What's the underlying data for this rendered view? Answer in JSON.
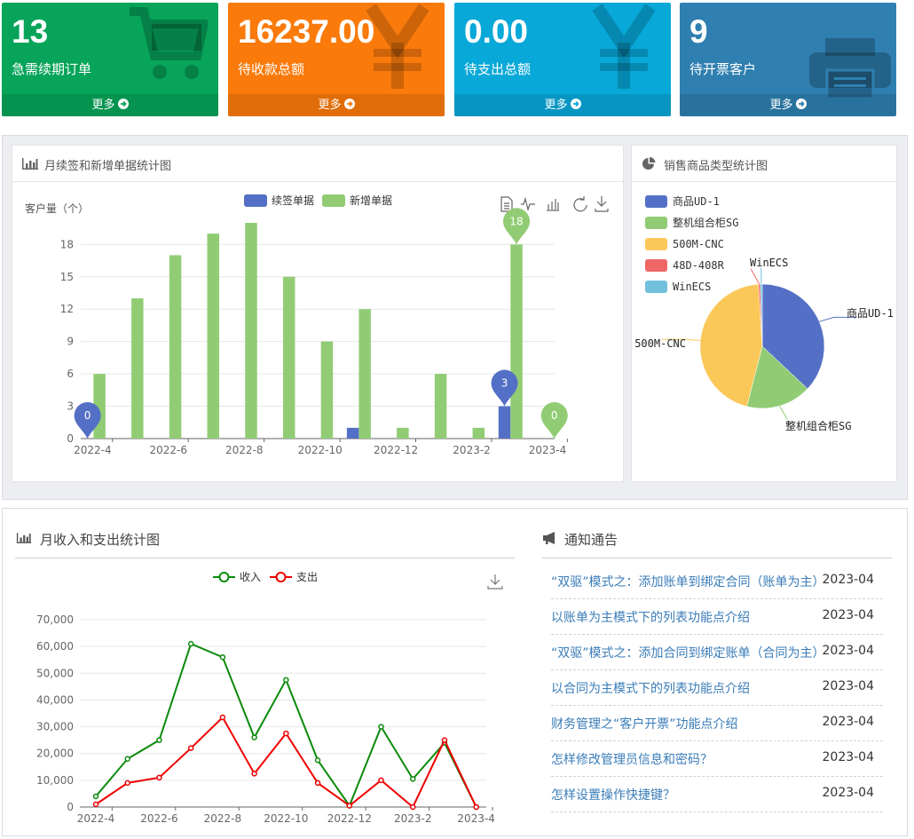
{
  "stats": [
    {
      "value": "13",
      "label": "急需续期订单",
      "more": "更多",
      "color": "#07a45a",
      "icon": "cart-icon"
    },
    {
      "value": "16237.00",
      "label": "待收款总额",
      "more": "更多",
      "color": "#fa7a0b",
      "icon": "yen-icon"
    },
    {
      "value": "0.00",
      "label": "待支出总额",
      "more": "更多",
      "color": "#08a8d8",
      "icon": "yen-icon"
    },
    {
      "value": "9",
      "label": "待开票客户",
      "more": "更多",
      "color": "#2f7fb0",
      "icon": "printer-icon"
    }
  ],
  "bar_panel": {
    "title": "月续签和新增单据统计图",
    "ylabel": "客户量（个）"
  },
  "pie_panel": {
    "title": "销售商品类型统计图"
  },
  "line_panel": {
    "title": "月收入和支出统计图"
  },
  "notice_panel": {
    "title": "通知通告",
    "items": [
      {
        "title": "“双驱”模式之：添加账单到绑定合同（账单为主）",
        "date": "2023-04"
      },
      {
        "title": "以账单为主模式下的列表功能点介绍",
        "date": "2023-04"
      },
      {
        "title": "“双驱”模式之：添加合同到绑定账单（合同为主）",
        "date": "2023-04"
      },
      {
        "title": "以合同为主模式下的列表功能点介绍",
        "date": "2023-04"
      },
      {
        "title": "财务管理之“客户开票”功能点介绍",
        "date": "2023-04"
      },
      {
        "title": "怎样修改管理员信息和密码？",
        "date": "2023-04"
      },
      {
        "title": "怎样设置操作快捷键？",
        "date": "2023-04"
      }
    ]
  },
  "chart_data": [
    {
      "type": "bar",
      "ylabel": "客户量（个）",
      "categories": [
        "2022-4",
        "2022-5",
        "2022-6",
        "2022-7",
        "2022-8",
        "2022-9",
        "2022-10",
        "2022-11",
        "2022-12",
        "2023-1",
        "2023-2",
        "2023-3",
        "2023-4"
      ],
      "xticks": [
        "2022-4",
        "2022-6",
        "2022-8",
        "2022-10",
        "2022-12",
        "2023-2",
        "2023-4"
      ],
      "yticks": [
        0,
        3,
        6,
        9,
        12,
        15,
        18
      ],
      "ylim": [
        0,
        20
      ],
      "series": [
        {
          "name": "续签单据",
          "color": "#5470c6",
          "values": [
            0,
            0,
            0,
            0,
            0,
            0,
            0,
            1,
            0,
            0,
            0,
            3,
            0
          ]
        },
        {
          "name": "新增单据",
          "color": "#91cc75",
          "values": [
            6,
            13,
            17,
            19,
            20,
            15,
            9,
            12,
            1,
            6,
            1,
            18,
            0
          ]
        }
      ],
      "markpoints": [
        {
          "series": "续签单据",
          "category": "2022-4",
          "value": "0"
        },
        {
          "series": "续签单据",
          "category": "2023-3",
          "value": "3"
        },
        {
          "series": "新增单据",
          "category": "2023-3",
          "value": "18"
        },
        {
          "series": "新增单据",
          "category": "2023-4",
          "value": "0"
        }
      ]
    },
    {
      "type": "pie",
      "slices": [
        {
          "name": "商品UD-1",
          "value": 37,
          "color": "#5470c6"
        },
        {
          "name": "整机组合柜SG",
          "value": 17,
          "color": "#91cc75"
        },
        {
          "name": "500M-CNC",
          "value": 45,
          "color": "#fac858"
        },
        {
          "name": "48D-408R",
          "value": 0.5,
          "color": "#ee6666"
        },
        {
          "name": "WinECS",
          "value": 0.5,
          "color": "#73c0de"
        }
      ]
    },
    {
      "type": "line",
      "categories": [
        "2022-4",
        "2022-5",
        "2022-6",
        "2022-7",
        "2022-8",
        "2022-9",
        "2022-10",
        "2022-11",
        "2022-12",
        "2023-1",
        "2023-2",
        "2023-3",
        "2023-4"
      ],
      "xticks": [
        "2022-4",
        "2022-6",
        "2022-8",
        "2022-10",
        "2022-12",
        "2023-2",
        "2023-4"
      ],
      "yticks": [
        "0",
        "10,000",
        "20,000",
        "30,000",
        "40,000",
        "50,000",
        "60,000",
        "70,000"
      ],
      "ylim": [
        0,
        70000
      ],
      "series": [
        {
          "name": "收入",
          "color": "#0a8a0a",
          "values": [
            4000,
            18000,
            25000,
            61000,
            56000,
            26000,
            47500,
            17500,
            500,
            30000,
            10500,
            24000,
            0
          ]
        },
        {
          "name": "支出",
          "color": "#ee0000",
          "values": [
            1000,
            9000,
            11000,
            22000,
            33500,
            12500,
            27500,
            9000,
            500,
            10000,
            0,
            25000,
            0
          ]
        }
      ]
    }
  ]
}
